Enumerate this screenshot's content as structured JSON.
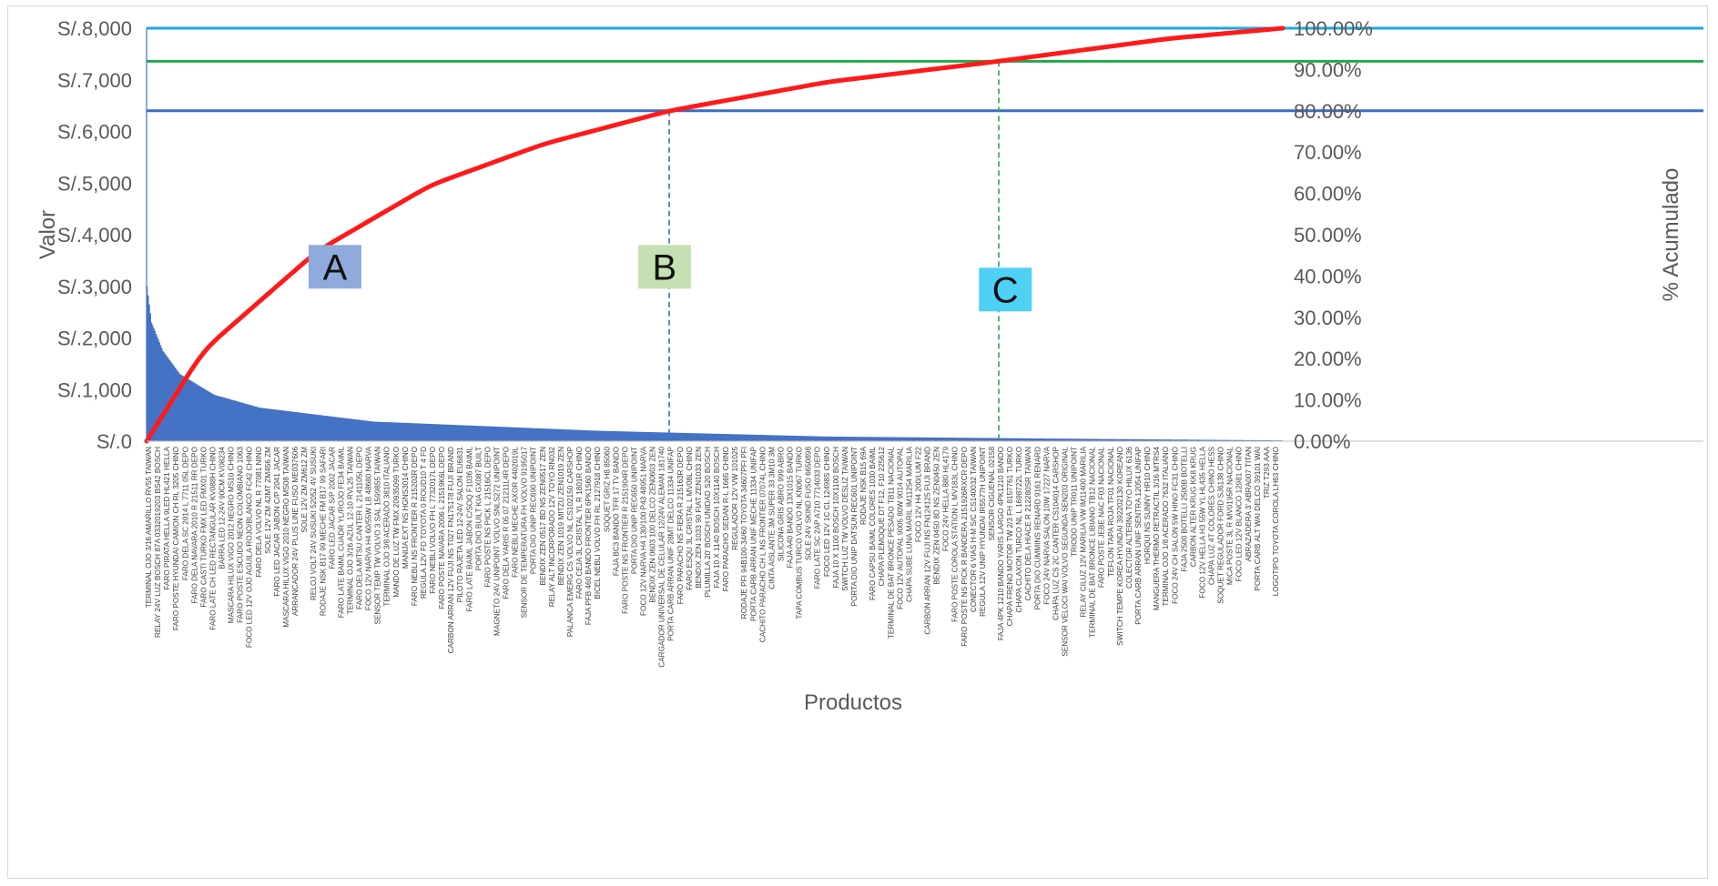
{
  "chart_data": {
    "type": "pareto",
    "xlabel": "Productos",
    "ylabel": "Valor",
    "y2label": "% Acumulado",
    "ylim": [
      0,
      8000
    ],
    "y2lim": [
      0,
      1
    ],
    "y_ticks": [
      "S/.0",
      "S/.1,000",
      "S/.2,000",
      "S/.3,000",
      "S/.4,000",
      "S/.5,000",
      "S/.6,000",
      "S/.7,000",
      "S/.8,000"
    ],
    "y2_ticks": [
      "0.00%",
      "10.00%",
      "20.00%",
      "30.00%",
      "40.00%",
      "50.00%",
      "60.00%",
      "70.00%",
      "80.00%",
      "90.00%",
      "100.00%"
    ],
    "item_count": 1000,
    "value_profile_knots": [
      {
        "rank": 1,
        "value": 3000
      },
      {
        "rank": 5,
        "value": 2300
      },
      {
        "rank": 15,
        "value": 1750
      },
      {
        "rank": 30,
        "value": 1300
      },
      {
        "rank": 60,
        "value": 900
      },
      {
        "rank": 100,
        "value": 650
      },
      {
        "rank": 200,
        "value": 380
      },
      {
        "rank": 400,
        "value": 200
      },
      {
        "rank": 600,
        "value": 90
      },
      {
        "rank": 800,
        "value": 50
      },
      {
        "rank": 1000,
        "value": 15
      }
    ],
    "cumulative_knots": [
      {
        "rank": 0,
        "pct": 0
      },
      {
        "rank": 50,
        "pct": 0.22
      },
      {
        "rank": 150,
        "pct": 0.46
      },
      {
        "rank": 250,
        "pct": 0.62
      },
      {
        "rank": 350,
        "pct": 0.72
      },
      {
        "rank": 460,
        "pct": 0.8
      },
      {
        "rank": 600,
        "pct": 0.87
      },
      {
        "rank": 750,
        "pct": 0.92
      },
      {
        "rank": 900,
        "pct": 0.975
      },
      {
        "rank": 1000,
        "pct": 1.0
      }
    ],
    "reference_lines": [
      {
        "pct": 1.0,
        "color": "#1fa7df"
      },
      {
        "pct": 0.92,
        "color": "#22a94a"
      },
      {
        "pct": 0.8,
        "color": "#3b6cc4"
      }
    ],
    "cutoffs": [
      {
        "pct": 0.8,
        "rank": 460,
        "color": "#3b6cc4"
      },
      {
        "pct": 0.92,
        "rank": 750,
        "color": "#22a94a"
      }
    ],
    "zones": [
      {
        "label": "A",
        "color": "#8faadc",
        "rank": 165,
        "pct": 0.42
      },
      {
        "label": "B",
        "color": "#c5e0b4",
        "rank": 455,
        "pct": 0.42
      },
      {
        "label": "C",
        "color": "#4fd0f7",
        "rank": 755,
        "pct": 0.365
      }
    ],
    "bar_color": "#4472c4",
    "curve_color": "#ff1a1a",
    "categories": [
      "TERMINAL OJO 3/16 AMARILLO RV55 TAIWAN",
      "RELAY 24V LUZ BOSCH 87A 0332019203 BS42 BOSCH",
      "FARO PIRATA HELLA 9LED HL421 HELLA",
      "FARO POSTE HYUNDAI CAMION CH RL 3205 CHINO",
      "FARO DELA SC 2014 L 7711 05L DEPO",
      "FARO DELA NAVARA 2010 R 21511 RR DEPO",
      "FARO CASTI TURKO FMX LED FMX01 TURKO",
      "FARO LATE CH LED RECTANGULAR KV088H CHINO",
      "BARRA LED 12-24V 90CM KV08234",
      "MASCARA HILUX VIGO 2012 NEGRO MS10 CHINO",
      "FARO POSTE ESCUDO NEON COLOMBIANO 1063",
      "FOCO LED 12V OJO AGUILA ROJO/BLANCO FC42 CHINO",
      "FARO DELA VOLVO NL R 77081 NINO",
      "SOLE 12V ZM 42MT ZM456 ZM",
      "FARO LED JACAR JABON C/P 2041 JACAR",
      "MASCARA HILUX VIGO 2010 NEGRO MS08 TAIWAN",
      "ARRANCADOR 24V PLUS LINE FUSO ME037606",
      "SOLE 12V ZM ZM612 ZM",
      "RELOJ VOLT 24V SUSUKI 52052 4V SUSUKI",
      "RODAJE NSK B17 99 MECHE FM B17 99 SAFARI",
      "FARO LED JACAR S/P 2002 JACAR",
      "FARO LATE BAIML CUADR YL/ROJO FE34 BAIML",
      "TERMINAL OJO 3/16 AZUL 12-10 RVL25 TAIWAN",
      "FARO DELA MITSU CANTER L 2141105L DEPO",
      "FOCO 12V NARVA H4 60/55W LB 48680 NARVA",
      "SENSOR TEMP TW VOLVO 3 SAL 1599855 TAIWAN",
      "TERMINAL OJO 3/8 ACERADO 3810 ITALIANO",
      "MANDO DE LUZ TW FMX 20935099 TURKO",
      "MANIJA EXT NS HGNS3014 CHINO",
      "FARO NEBLI NS FRONTIER R 215202R DEPO",
      "REGULA 12V FD TOYOTA 0 ROUD10 T 4 FD",
      "FARO NEBLI VOLVO FH L 7732017L DEPO",
      "FARO POSTE NAVARA 2006 L 21519K6L DEPO",
      "CARBON ARRAN 12V FUJI NS T027 FN175178 FUJI BRAND",
      "PILOTO RAJETA LED 12-24V SALON EU6831",
      "FARO LATE BAIML JABON C/SOQ F1036 BAIML",
      "PORTA DIO BUILT KIA GX087 BUILT",
      "FARO POSTE NS PICK L 21516CL DEPO",
      "MAGNETO 24V UNIPOINT VOLVO SNLS272 UNIPOINT",
      "FARO DELA YARIS R 05 07 21211L4R DEPO",
      "FARO NEBLI MECHE AXOR 4402019L",
      "SENSOR DE TEMPERATURA FH VOLVO 9195017",
      "PORTA DIO UNIP REC690 UNIPOINT",
      "BENDIX ZEN 0517 BD NS ZEN0517 ZEN",
      "RELAY ALT INCORPORADO 12V TOYO RN032",
      "BENDIX ZEN 1019 MITZU ZEN1019 ZEN",
      "PALANCA EMERG CS VOLVO NL CS102150 CARSHOP",
      "FARO CEJA 3L CRISTAL YL R 1801R CHINO",
      "FAJA PFB 460 BANDO FRONTIER 6PK1560 BANDO",
      "BICEL NEBLI VOLVO FH RL 2127918 CHINO",
      "SOQUET GRIZ H8 85060",
      "FAJA BC3 BANDO TFR 17 TV BANDO",
      "FARO POSTE NS FRONTIER R 2151904R DEPO",
      "PORTA DIO UNIP REC650 UNIPOINT",
      "FOCO 12V NARVA H4 130/100 P43 48951 NARVA",
      "BENDIX ZEN 0603 100 DELCO ZEN0603 ZEN",
      "CARGADOR UNIVERSAL DE CELULAR 12/24V ALEMAN 181740",
      "PORTA CARB ARRAN UNIF 28MT DELCO 11334 UNIFAP",
      "FARO PARACHO NS FIERA R 215163R DEPO",
      "FARO ESQU 3L CRISTAL L MV08L CHINO",
      "BENDIX ZEN 1033 90 FIAT ZEN1033 ZEN",
      "PLUMILLA 20' BOSCH UNIDAD S20 BOSCH",
      "FAJA 10 X 1140 BOSCH 10X1140 BOSCH",
      "FARO PARACHO SEDAN R-L 1665 CHINO",
      "REGULADOR 12V VW 101025",
      "RODAJE PFI 94B100-34/60 TOYOTA 34607PFI PFI",
      "PORTA CARB ARRAN UNIF MECHE 11334 UNIFAP",
      "CACHITO PARACHO CH L NS FRONTIER 07074L CHINO",
      "CINTA AISLANTE 3M SUPER 33 3M10 3M",
      "SILICONA GRIS ABRO 999 ABRO",
      "FAJA A40 BANDO 13X1015 BANDO",
      "TAPA COMBUS TURCO VOLVO NL KN067 TURKO",
      "SOLE 24V SKIND FUSO 6650898",
      "FARO LATE SC 2AP A710 7714033 DEPO",
      "FOCO LED 12V 1C CL 12498S CHINO",
      "FAJA 10 X 1100 BOSCH 10X1100 BOSCH",
      "SWITCH LUZ TW VOLVO DESLIZ TAIWAN",
      "PORTA DIO UNIP DATSUN REC601 UNIPOINT",
      "RODAJE NSK B15 69A",
      "FARO CAPSU BAIML COLORES 1030 BAIML",
      "CHAPA PLEMOQUE DT F12, F10 225612",
      "TERMINAL DE BAT BRONCE PESADO TB11 NACIONAL",
      "FOCO 12V AUTOPAL 9005 80W 9014 AUTOPAL",
      "CHAPA SUBE LUNA MARIL IM11254 MARILIA",
      "FOCO 12V H4 200/LUM F22",
      "CARBON ARRAN 12V FUJI NS FN124125 FUJI BRAND",
      "BENDIX ZEN 0450 8D NS ZEN0450 ZEN",
      "FOCO 24V HELLA 880 HL4179",
      "FARO POSTE COROLA STATION L MV183L CHINO",
      "FARO POSTE NS PICK R BANDERA 2151926RXCR DEPO",
      "CONECTOR 6 VIAS H-M S/C CS140032 TAIWAN",
      "REGULA 12V UNIP HYUNDAI IR5577H UNIPOINT",
      "SENSOR CIGUENAL 02158",
      "FAJA 4PK 1210 BANDO YARIS LARGO 4PK1210 BANDO",
      "CHAPA FRENO MOTOR TW 2/3 FH 8157761 TURKO",
      "CHAPA CLAXON TURCO NL L 1698722L TURKO",
      "CACHITO DELA HIACE R 212280SR TAIWAN",
      "PORTA DIO CUMMINS RENARD 9161 RENARD",
      "FOCO 24V NARVA SALON 10W 17227 NARVA",
      "CHAPA LUZ CS 2C CANTER CS104014 CARSHOP",
      "SENSOR VELOCI WAI VOLVO SEGUNDA SEN203 ORIGINAL",
      "TRIODO UNIP TR011 UNIPOINT",
      "RELAY CILUZ 12V MARILIA VW IM11400 MARILIA",
      "TERMINAL DE BAT BRONCE LIBIANO TB12 NACIONAL",
      "FARO POSTE JEBE NAC F03 NACIONAL",
      "TEFLON TAPA ROJA TF01 NACIONAL",
      "SWITCH TEMPE KOREA HYUNDAI 392202130 KOREANO",
      "COLECTOR ALTERNA TOYO HILUX 6136",
      "PORTA CARB ARRAN UNIF SENTRA 12054 UNIFAP",
      "HORQUI NS SUNNY HR10 CHINO",
      "MANGUERA THERMO RETRACTIL 3/16 MTRS4",
      "TERMINAL OJO 1/8 ACERADO 7632 ITALIANO",
      "FOCO 24V CH SALON 5W HINO FC31 CHINO",
      "FAJA 2500 BOTELLI 2500B BOTELLI",
      "CARBON ALTER KRUG KK8 KRUG",
      "FOCO 12V HELLA H3 55W YL HL435 HELLA",
      "CHAPA LUZ 4T COLORES CHINO HESS",
      "SOQUET REGULADOR FORD SJ6138 CHINO",
      "MICA POSTE 3L R MV0195R NACIONAL",
      "FOCO LED 12V BLANCO 12981 CHINO",
      "ABRAZADERA 3' ABRA007 TITAN",
      "PORTA CARB ALT WAI DELCO 39101 WAI",
      "TRIZ T293 AAA",
      "LOGOTIPO TOYOTA COROLA LH63 CHINO"
    ]
  }
}
